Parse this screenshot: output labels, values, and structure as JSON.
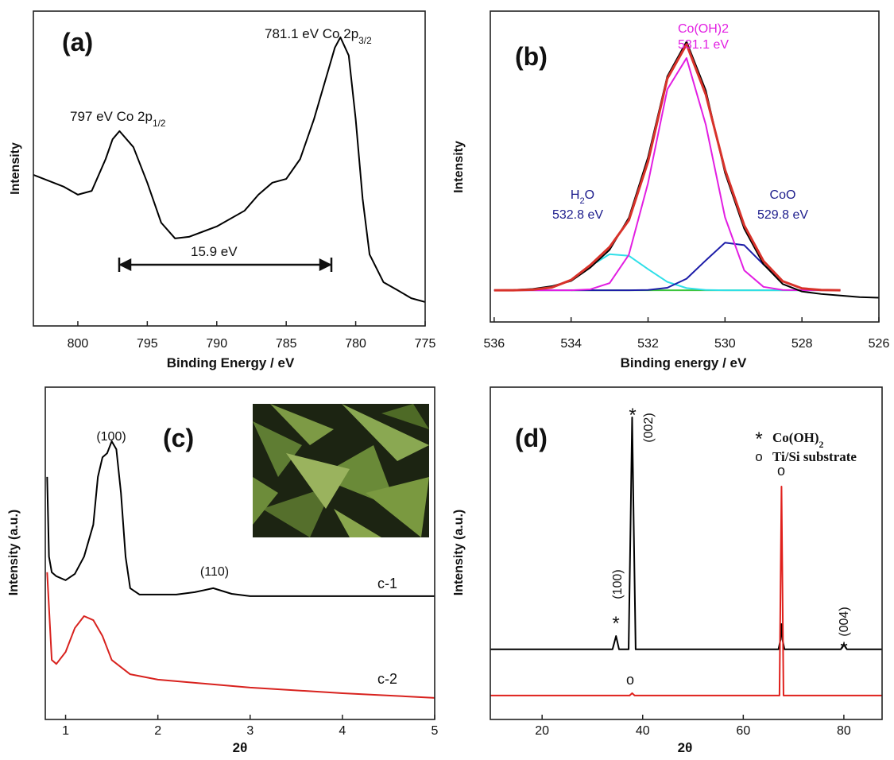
{
  "chart_data": [
    {
      "type": "line",
      "label": "(a)",
      "x_label": "Binding Energy / eV",
      "y_label": "Intensity",
      "xlim": [
        803.2,
        775
      ],
      "xticks": [
        800,
        795,
        790,
        785,
        780,
        775
      ],
      "ylim": [
        0,
        100
      ],
      "series": [
        {
          "color": "#000000",
          "x": [
            803.2,
            801,
            800,
            799,
            798,
            797.5,
            797,
            796,
            795,
            794,
            793,
            792,
            790,
            788,
            787,
            786,
            785,
            784,
            783,
            782,
            781.5,
            781.1,
            780.5,
            780,
            779.5,
            779,
            778,
            777,
            776,
            775
          ],
          "values": [
            48.0,
            44.2,
            41.7,
            42.9,
            53.0,
            59.3,
            61.9,
            56.8,
            45.5,
            32.8,
            27.8,
            28.3,
            31.6,
            36.6,
            41.7,
            45.5,
            46.7,
            53.0,
            65.7,
            80.8,
            88.4,
            91.7,
            85.9,
            65.7,
            40.4,
            22.7,
            13.9,
            11.4,
            8.8,
            7.6
          ]
        }
      ],
      "annotations": [
        {
          "parts": [
            {
              "text": "797 eV Co 2p"
            },
            {
              "text": "1/2",
              "sub": true
            }
          ],
          "color": "#111111"
        },
        {
          "parts": [
            {
              "text": "781.1 eV Co 2p"
            },
            {
              "text": "3/2",
              "sub": true
            }
          ],
          "color": "#111111"
        },
        {
          "parts": [
            {
              "text": "15.9 eV"
            }
          ],
          "color": "#111111"
        }
      ]
    },
    {
      "type": "line",
      "label": "(b)",
      "x_label": "Binding energy / eV",
      "y_label": "Intensity",
      "xlim": [
        536.1,
        526
      ],
      "xticks": [
        536,
        534,
        532,
        530,
        528,
        526
      ],
      "ylim": [
        0,
        100
      ],
      "series": [
        {
          "color": "#3cc43c",
          "x": [
            536,
            535.5,
            535,
            534.5,
            534,
            533.5,
            533,
            532.5,
            532,
            531.5,
            531,
            530.5,
            530,
            529.5,
            529,
            528.5,
            528,
            527.5,
            527,
            526.5,
            526
          ],
          "values": [
            null,
            null,
            null,
            null,
            10.2,
            10.2,
            10.2,
            10.2,
            10.2,
            10.2,
            10.2,
            10.2,
            10.2,
            10.2,
            10.2,
            10.2,
            10.2,
            null,
            null,
            null,
            null
          ]
        },
        {
          "color": "#2fdfe8",
          "x": [
            536,
            535.5,
            535,
            534.5,
            534,
            533.5,
            533,
            532.5,
            532,
            531.5,
            531,
            530.5,
            530,
            529.5,
            529,
            528.5,
            528,
            527.5,
            527,
            526.5,
            526
          ],
          "values": [
            10.2,
            10.2,
            10.4,
            11.1,
            13.5,
            18.0,
            21.8,
            21.3,
            17.0,
            12.9,
            10.9,
            10.3,
            10.2,
            10.2,
            10.2,
            10.2,
            10.2,
            10.2,
            10.2,
            null,
            null
          ]
        },
        {
          "color": "#1c1ca8",
          "x": [
            536,
            535.5,
            535,
            534.5,
            534,
            533.5,
            533,
            532.5,
            532,
            531.5,
            531,
            530.5,
            530,
            529.5,
            529,
            528.5,
            528,
            527.5,
            527,
            526.5,
            526
          ],
          "values": [
            10.2,
            10.2,
            10.2,
            10.2,
            10.2,
            10.2,
            10.2,
            10.2,
            10.3,
            11.0,
            13.9,
            19.8,
            25.5,
            24.7,
            18.5,
            13.0,
            10.8,
            10.3,
            10.2,
            null,
            null
          ]
        },
        {
          "color": "#e21ee2",
          "x": [
            536,
            535.5,
            535,
            534.5,
            534,
            533.5,
            533,
            532.5,
            532,
            531.5,
            531,
            530.5,
            530,
            529.5,
            529,
            528.5,
            528,
            527.5,
            527,
            526.5,
            526
          ],
          "values": [
            10.2,
            10.2,
            10.2,
            10.2,
            10.2,
            10.5,
            12.5,
            21.6,
            44.7,
            74.8,
            84.9,
            63.5,
            33.7,
            16.6,
            11.3,
            10.3,
            10.2,
            10.2,
            10.2,
            null,
            null
          ]
        },
        {
          "color": "#000000",
          "x": [
            536,
            535.5,
            535,
            534.5,
            534,
            533.5,
            533,
            532.5,
            532,
            531.5,
            531,
            530.5,
            530,
            529.5,
            529,
            528.5,
            528,
            527.5,
            527,
            526.5,
            526
          ],
          "values": [
            10.2,
            10.3,
            10.6,
            11.5,
            13.2,
            17.5,
            23.2,
            33.5,
            53.0,
            79.0,
            90.2,
            74.5,
            48.0,
            30.0,
            18.6,
            12.2,
            9.8,
            9.0,
            8.5,
            8.0,
            7.8
          ]
        },
        {
          "color": "#d8322a",
          "x": [
            536,
            535.5,
            535,
            534.5,
            534,
            533.5,
            533,
            532.5,
            532,
            531.5,
            531,
            530.5,
            530,
            529.5,
            529,
            528.5,
            528,
            527.5,
            527,
            526.5,
            526
          ],
          "values": [
            10.2,
            10.2,
            10.4,
            11.1,
            13.5,
            18.3,
            24.1,
            32.7,
            51.6,
            78.3,
            89.3,
            73.2,
            49.0,
            31.1,
            19.6,
            13.1,
            10.8,
            10.3,
            10.2,
            null,
            null
          ]
        }
      ],
      "annotations": [
        {
          "parts": [
            {
              "text": "Co(OH)2"
            }
          ],
          "color": "#e21ee2"
        },
        {
          "parts": [
            {
              "text": "531.1 eV"
            }
          ],
          "color": "#e21ee2"
        },
        {
          "parts": [
            {
              "text": "H"
            },
            {
              "text": "2",
              "sub": true
            },
            {
              "text": "O"
            }
          ],
          "color": "#1c1c8c"
        },
        {
          "parts": [
            {
              "text": "532.8 eV"
            }
          ],
          "color": "#1c1c8c"
        },
        {
          "parts": [
            {
              "text": "CoO"
            }
          ],
          "color": "#1c1c8c"
        },
        {
          "parts": [
            {
              "text": "529.8 eV"
            }
          ],
          "color": "#1c1c8c"
        }
      ]
    },
    {
      "type": "line",
      "label": "(c)",
      "x_label": "2θ",
      "y_label": "Intensity (a.u.)",
      "xlim": [
        0.78,
        5
      ],
      "xticks": [
        1,
        2,
        3,
        4,
        5
      ],
      "ylim": [
        0,
        100
      ],
      "series": [
        {
          "color": "#000000",
          "x": [
            0.8,
            0.82,
            0.85,
            0.9,
            1.0,
            1.1,
            1.2,
            1.3,
            1.35,
            1.4,
            1.45,
            1.5,
            1.55,
            1.6,
            1.65,
            1.7,
            1.8,
            2.0,
            2.2,
            2.4,
            2.6,
            2.8,
            3.0,
            4.0,
            5.0
          ],
          "values": [
            73.0,
            49.0,
            44.3,
            43.1,
            41.9,
            43.8,
            49.0,
            58.6,
            73.0,
            78.9,
            80.1,
            83.7,
            81.3,
            68.2,
            49.0,
            39.5,
            37.6,
            37.6,
            37.6,
            38.3,
            39.5,
            37.8,
            37.1,
            37.1,
            37.1
          ]
        },
        {
          "color": "#d8221e",
          "x": [
            0.8,
            0.85,
            0.9,
            1.0,
            1.1,
            1.2,
            1.3,
            1.4,
            1.5,
            1.7,
            2.0,
            2.5,
            3.0,
            4.0,
            5.0
          ],
          "values": [
            44.3,
            17.9,
            16.7,
            20.3,
            27.5,
            31.1,
            29.9,
            25.1,
            17.9,
            13.6,
            12.0,
            10.8,
            9.6,
            7.9,
            6.5
          ]
        }
      ],
      "annotations": [
        {
          "parts": [
            {
              "text": "(100)"
            }
          ],
          "color": "#111111"
        },
        {
          "parts": [
            {
              "text": "(110)"
            }
          ],
          "color": "#111111"
        },
        {
          "parts": [
            {
              "text": "c-1"
            }
          ],
          "color": "#111111"
        },
        {
          "parts": [
            {
              "text": "c-2"
            }
          ],
          "color": "#111111"
        }
      ]
    },
    {
      "type": "line",
      "label": "(d)",
      "x_label": "2θ",
      "y_label": "Intensity (a.u.)",
      "xlim": [
        9.7,
        87.6
      ],
      "xticks": [
        20,
        40,
        60,
        80
      ],
      "ylim": [
        0,
        100
      ],
      "series": [
        {
          "color": "#000000",
          "x": [
            9.7,
            34,
            34.7,
            35.3,
            37.2,
            37.6,
            37.9,
            38.2,
            38.6,
            67,
            67.4,
            67.6,
            67.8,
            68.2,
            79.4,
            80,
            80.6,
            87.6
          ],
          "values": [
            21.1,
            21.1,
            25.1,
            21.1,
            21.1,
            60,
            90.9,
            60,
            21.1,
            21.1,
            24,
            28.7,
            24,
            21.1,
            21.1,
            22.7,
            21.1,
            21.1
          ]
        },
        {
          "color": "#e0201c",
          "x": [
            9.7,
            37.4,
            37.9,
            38.4,
            67.2,
            67.6,
            68.0,
            87.6
          ],
          "values": [
            7.2,
            7.2,
            7.9,
            7.2,
            7.2,
            70.1,
            7.2,
            7.2
          ]
        }
      ],
      "annotations": [
        {
          "parts": [
            {
              "text": "*"
            }
          ],
          "color": "#111111"
        },
        {
          "parts": [
            {
              "text": "(002)"
            }
          ],
          "color": "#111111"
        },
        {
          "parts": [
            {
              "text": "*"
            }
          ],
          "color": "#111111"
        },
        {
          "parts": [
            {
              "text": "(100)"
            }
          ],
          "color": "#111111"
        },
        {
          "parts": [
            {
              "text": "*"
            }
          ],
          "color": "#111111"
        },
        {
          "parts": [
            {
              "text": "(004)"
            }
          ],
          "color": "#111111"
        },
        {
          "parts": [
            {
              "text": "o"
            }
          ],
          "color": "#111111"
        },
        {
          "parts": [
            {
              "text": "o"
            }
          ],
          "color": "#111111"
        },
        {
          "parts": [
            {
              "text": "*"
            }
          ],
          "color": "#111111"
        },
        {
          "parts": [
            {
              "text": "Co(OH)"
            },
            {
              "text": "2",
              "sub": true
            }
          ],
          "color": "#111111"
        },
        {
          "parts": [
            {
              "text": "o"
            }
          ],
          "color": "#111111"
        },
        {
          "parts": [
            {
              "text": "Ti/Si substrate"
            }
          ],
          "color": "#111111"
        }
      ]
    }
  ]
}
